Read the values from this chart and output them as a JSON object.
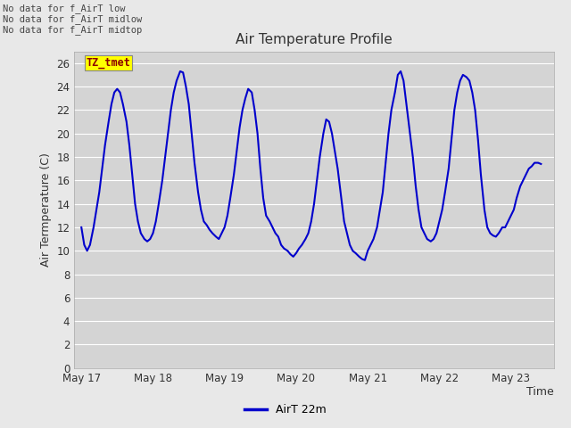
{
  "title": "Air Temperature Profile",
  "xlabel": "Time",
  "ylabel": "Air Termperature (C)",
  "ylim": [
    0,
    27
  ],
  "yticks": [
    0,
    2,
    4,
    6,
    8,
    10,
    12,
    14,
    16,
    18,
    20,
    22,
    24,
    26
  ],
  "line_color": "#0000cc",
  "line_width": 1.5,
  "fig_bg_color": "#e8e8e8",
  "plot_bg_color": "#d4d4d4",
  "grid_color": "#ffffff",
  "legend_label": "AirT 22m",
  "no_data_texts": [
    "No data for f_AirT low",
    "No data for f_AirT midlow",
    "No data for f_AirT midtop"
  ],
  "tz_label": "TZ_tmet",
  "x_tick_labels": [
    "May 17",
    "May 18",
    "May 19",
    "May 20",
    "May 21",
    "May 22",
    "May 23"
  ],
  "x_tick_positions": [
    0,
    1,
    2,
    3,
    4,
    5,
    6
  ],
  "x_lim_left": -0.1,
  "x_lim_right": 6.6,
  "data_x": [
    0.0,
    0.04,
    0.08,
    0.12,
    0.17,
    0.21,
    0.25,
    0.29,
    0.33,
    0.38,
    0.42,
    0.46,
    0.5,
    0.54,
    0.58,
    0.63,
    0.67,
    0.71,
    0.75,
    0.79,
    0.83,
    0.88,
    0.92,
    0.96,
    1.0,
    1.04,
    1.08,
    1.13,
    1.17,
    1.21,
    1.25,
    1.29,
    1.33,
    1.38,
    1.42,
    1.46,
    1.5,
    1.54,
    1.58,
    1.63,
    1.67,
    1.71,
    1.75,
    1.79,
    1.83,
    1.88,
    1.92,
    1.96,
    2.0,
    2.04,
    2.08,
    2.13,
    2.17,
    2.21,
    2.25,
    2.29,
    2.33,
    2.38,
    2.42,
    2.46,
    2.5,
    2.54,
    2.58,
    2.63,
    2.67,
    2.71,
    2.75,
    2.79,
    2.83,
    2.88,
    2.92,
    2.96,
    3.0,
    3.04,
    3.08,
    3.13,
    3.17,
    3.21,
    3.25,
    3.29,
    3.33,
    3.38,
    3.42,
    3.46,
    3.5,
    3.54,
    3.58,
    3.63,
    3.67,
    3.71,
    3.75,
    3.79,
    3.83,
    3.88,
    3.92,
    3.96,
    4.0,
    4.04,
    4.08,
    4.13,
    4.17,
    4.21,
    4.25,
    4.29,
    4.33,
    4.38,
    4.42,
    4.46,
    4.5,
    4.54,
    4.58,
    4.63,
    4.67,
    4.71,
    4.75,
    4.79,
    4.83,
    4.88,
    4.92,
    4.96,
    5.0,
    5.04,
    5.08,
    5.13,
    5.17,
    5.21,
    5.25,
    5.29,
    5.33,
    5.38,
    5.42,
    5.46,
    5.5,
    5.54,
    5.58,
    5.63,
    5.67,
    5.71,
    5.75,
    5.79,
    5.83,
    5.88,
    5.92,
    5.96,
    6.0,
    6.04,
    6.08,
    6.13,
    6.17,
    6.21,
    6.25,
    6.29,
    6.33,
    6.38,
    6.42
  ],
  "data_y": [
    12.0,
    10.5,
    10.0,
    10.5,
    12.0,
    13.5,
    15.0,
    17.0,
    19.0,
    21.0,
    22.5,
    23.5,
    23.8,
    23.5,
    22.5,
    21.0,
    19.0,
    16.5,
    14.0,
    12.5,
    11.5,
    11.0,
    10.8,
    11.0,
    11.5,
    12.5,
    14.0,
    16.0,
    18.0,
    20.0,
    22.0,
    23.5,
    24.5,
    25.3,
    25.2,
    24.0,
    22.5,
    20.0,
    17.5,
    15.0,
    13.5,
    12.5,
    12.2,
    11.8,
    11.5,
    11.2,
    11.0,
    11.5,
    12.0,
    13.0,
    14.5,
    16.5,
    18.5,
    20.5,
    22.0,
    23.0,
    23.8,
    23.5,
    22.0,
    20.0,
    17.0,
    14.5,
    13.0,
    12.5,
    12.0,
    11.5,
    11.2,
    10.5,
    10.2,
    10.0,
    9.7,
    9.5,
    9.8,
    10.2,
    10.5,
    11.0,
    11.5,
    12.5,
    14.0,
    16.0,
    18.0,
    20.0,
    21.2,
    21.0,
    20.0,
    18.5,
    17.0,
    14.5,
    12.5,
    11.5,
    10.5,
    10.0,
    9.8,
    9.5,
    9.3,
    9.2,
    10.0,
    10.5,
    11.0,
    12.0,
    13.5,
    15.0,
    17.5,
    20.0,
    22.0,
    23.5,
    25.0,
    25.3,
    24.5,
    22.5,
    20.5,
    18.0,
    15.5,
    13.5,
    12.0,
    11.5,
    11.0,
    10.8,
    11.0,
    11.5,
    12.5,
    13.5,
    15.0,
    17.0,
    19.5,
    22.0,
    23.5,
    24.5,
    25.0,
    24.8,
    24.5,
    23.5,
    22.0,
    19.5,
    16.5,
    13.5,
    12.0,
    11.5,
    11.3,
    11.2,
    11.5,
    12.0,
    12.0,
    12.5,
    13.0,
    13.5,
    14.5,
    15.5,
    16.0,
    16.5,
    17.0,
    17.2,
    17.5,
    17.5,
    17.4
  ]
}
